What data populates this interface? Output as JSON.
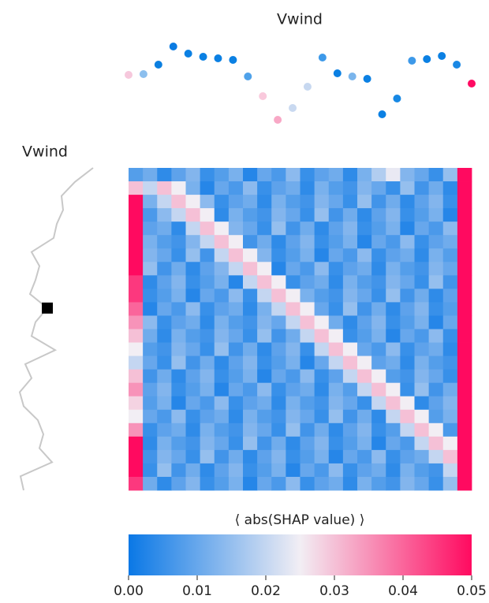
{
  "chart_data": {
    "type": "heatmap",
    "title": "Vwind",
    "row_title": "Vwind",
    "colorbar_label": "⟨ abs(SHAP value) ⟩",
    "colormap": [
      "#0a78e6",
      "#f2eef4",
      "#ff0a60"
    ],
    "clim": [
      0,
      0.05
    ],
    "cticks": [
      {
        "value": 0,
        "label": "0.00"
      },
      {
        "value": 0.01,
        "label": "0.01"
      },
      {
        "value": 0.02,
        "label": "0.02"
      },
      {
        "value": 0.03,
        "label": "0.03"
      },
      {
        "value": 0.04,
        "label": "0.04"
      },
      {
        "value": 0.05,
        "label": "0.05"
      }
    ],
    "top_values": [
      65,
      66,
      78,
      101,
      92,
      88,
      86,
      84,
      63,
      38,
      8,
      23,
      50,
      87,
      67,
      63,
      60,
      15,
      35,
      83,
      85,
      89,
      78,
      54
    ],
    "top_colors": [
      "#f6c8dc",
      "#8cbfee",
      "#0b7fe0",
      "#0a7be2",
      "#0b80e3",
      "#0b80e3",
      "#0b80e3",
      "#0b80e3",
      "#4fa2ea",
      "#f9c9dc",
      "#f8a8c6",
      "#c9d9f0",
      "#c7d8f0",
      "#3d99e9",
      "#0b80e3",
      "#7ab5ec",
      "#0b80e3",
      "#0b80e3",
      "#1788e4",
      "#3d99e9",
      "#0b80e3",
      "#0b80e3",
      "#1a88e4",
      "#ff0a62"
    ],
    "top_ylim": [
      0,
      110
    ],
    "left_values": [
      98,
      75,
      58,
      60,
      52,
      48,
      20,
      30,
      25,
      18,
      40,
      25,
      20,
      50,
      12,
      20,
      5,
      10,
      28,
      35,
      30,
      46,
      6,
      10
    ],
    "left_xlim": [
      0,
      110
    ],
    "selected_row": 10,
    "matrix": [
      [
        0.008,
        0.011,
        0.004,
        0.009,
        0.013,
        0.005,
        0.008,
        0.012,
        0.003,
        0.01,
        0.007,
        0.014,
        0.005,
        0.009,
        0.011,
        0.004,
        0.012,
        0.018,
        0.024,
        0.013,
        0.01,
        0.005,
        0.015,
        0.05
      ],
      [
        0.03,
        0.02,
        0.03,
        0.025,
        0.012,
        0.003,
        0.01,
        0.007,
        0.014,
        0.005,
        0.009,
        0.011,
        0.004,
        0.012,
        0.008,
        0.006,
        0.013,
        0.01,
        0.005,
        0.015,
        0.006,
        0.011,
        0.004,
        0.05
      ],
      [
        0.05,
        0.012,
        0.02,
        0.03,
        0.025,
        0.014,
        0.005,
        0.009,
        0.011,
        0.004,
        0.012,
        0.008,
        0.006,
        0.013,
        0.01,
        0.005,
        0.015,
        0.006,
        0.011,
        0.004,
        0.009,
        0.013,
        0.005,
        0.05
      ],
      [
        0.05,
        0.007,
        0.014,
        0.02,
        0.03,
        0.025,
        0.004,
        0.012,
        0.008,
        0.006,
        0.013,
        0.01,
        0.005,
        0.015,
        0.006,
        0.011,
        0.004,
        0.009,
        0.013,
        0.005,
        0.008,
        0.012,
        0.003,
        0.05
      ],
      [
        0.05,
        0.009,
        0.011,
        0.004,
        0.02,
        0.03,
        0.025,
        0.013,
        0.01,
        0.005,
        0.015,
        0.006,
        0.011,
        0.004,
        0.009,
        0.013,
        0.005,
        0.008,
        0.012,
        0.003,
        0.01,
        0.007,
        0.014,
        0.05
      ],
      [
        0.05,
        0.012,
        0.008,
        0.006,
        0.013,
        0.02,
        0.03,
        0.025,
        0.006,
        0.011,
        0.004,
        0.009,
        0.013,
        0.005,
        0.008,
        0.012,
        0.003,
        0.01,
        0.007,
        0.014,
        0.005,
        0.009,
        0.011,
        0.05
      ],
      [
        0.05,
        0.013,
        0.01,
        0.005,
        0.015,
        0.006,
        0.02,
        0.03,
        0.025,
        0.013,
        0.005,
        0.008,
        0.012,
        0.003,
        0.01,
        0.007,
        0.014,
        0.005,
        0.009,
        0.011,
        0.004,
        0.012,
        0.008,
        0.05
      ],
      [
        0.05,
        0.015,
        0.006,
        0.011,
        0.004,
        0.009,
        0.013,
        0.02,
        0.03,
        0.025,
        0.003,
        0.01,
        0.007,
        0.014,
        0.005,
        0.009,
        0.011,
        0.004,
        0.012,
        0.008,
        0.006,
        0.013,
        0.01,
        0.05
      ],
      [
        0.045,
        0.004,
        0.009,
        0.013,
        0.005,
        0.008,
        0.012,
        0.003,
        0.02,
        0.03,
        0.025,
        0.005,
        0.009,
        0.011,
        0.004,
        0.012,
        0.008,
        0.006,
        0.013,
        0.01,
        0.005,
        0.015,
        0.006,
        0.05
      ],
      [
        0.045,
        0.005,
        0.008,
        0.012,
        0.003,
        0.01,
        0.007,
        0.014,
        0.005,
        0.02,
        0.03,
        0.025,
        0.012,
        0.008,
        0.006,
        0.013,
        0.01,
        0.005,
        0.015,
        0.006,
        0.011,
        0.004,
        0.009,
        0.05
      ],
      [
        0.04,
        0.003,
        0.01,
        0.007,
        0.014,
        0.005,
        0.009,
        0.011,
        0.004,
        0.012,
        0.02,
        0.03,
        0.025,
        0.01,
        0.005,
        0.015,
        0.006,
        0.011,
        0.004,
        0.009,
        0.013,
        0.005,
        0.008,
        0.05
      ],
      [
        0.035,
        0.014,
        0.005,
        0.009,
        0.011,
        0.004,
        0.012,
        0.008,
        0.006,
        0.013,
        0.01,
        0.02,
        0.03,
        0.025,
        0.011,
        0.004,
        0.009,
        0.013,
        0.005,
        0.008,
        0.012,
        0.003,
        0.01,
        0.05
      ],
      [
        0.03,
        0.011,
        0.004,
        0.012,
        0.008,
        0.006,
        0.013,
        0.01,
        0.005,
        0.015,
        0.006,
        0.011,
        0.02,
        0.03,
        0.025,
        0.005,
        0.008,
        0.012,
        0.003,
        0.01,
        0.007,
        0.014,
        0.005,
        0.05
      ],
      [
        0.025,
        0.008,
        0.006,
        0.013,
        0.01,
        0.005,
        0.015,
        0.006,
        0.011,
        0.004,
        0.009,
        0.013,
        0.005,
        0.02,
        0.03,
        0.025,
        0.01,
        0.007,
        0.014,
        0.005,
        0.009,
        0.011,
        0.004,
        0.05
      ],
      [
        0.02,
        0.01,
        0.005,
        0.015,
        0.006,
        0.011,
        0.004,
        0.009,
        0.013,
        0.005,
        0.008,
        0.012,
        0.003,
        0.01,
        0.02,
        0.03,
        0.025,
        0.009,
        0.011,
        0.004,
        0.012,
        0.008,
        0.006,
        0.05
      ],
      [
        0.03,
        0.006,
        0.011,
        0.004,
        0.009,
        0.013,
        0.005,
        0.008,
        0.012,
        0.003,
        0.01,
        0.007,
        0.014,
        0.005,
        0.009,
        0.02,
        0.03,
        0.025,
        0.008,
        0.006,
        0.013,
        0.01,
        0.005,
        0.05
      ],
      [
        0.035,
        0.009,
        0.013,
        0.005,
        0.008,
        0.012,
        0.003,
        0.01,
        0.007,
        0.014,
        0.005,
        0.009,
        0.011,
        0.004,
        0.012,
        0.008,
        0.02,
        0.03,
        0.025,
        0.005,
        0.015,
        0.006,
        0.011,
        0.05
      ],
      [
        0.028,
        0.008,
        0.012,
        0.003,
        0.01,
        0.007,
        0.014,
        0.005,
        0.009,
        0.011,
        0.004,
        0.012,
        0.008,
        0.006,
        0.013,
        0.01,
        0.005,
        0.02,
        0.03,
        0.025,
        0.004,
        0.009,
        0.013,
        0.05
      ],
      [
        0.025,
        0.01,
        0.007,
        0.014,
        0.005,
        0.009,
        0.011,
        0.004,
        0.012,
        0.008,
        0.006,
        0.013,
        0.01,
        0.005,
        0.015,
        0.006,
        0.011,
        0.004,
        0.02,
        0.03,
        0.025,
        0.008,
        0.012,
        0.05
      ],
      [
        0.035,
        0.005,
        0.009,
        0.011,
        0.004,
        0.012,
        0.008,
        0.006,
        0.013,
        0.01,
        0.005,
        0.015,
        0.006,
        0.011,
        0.004,
        0.009,
        0.013,
        0.005,
        0.008,
        0.02,
        0.03,
        0.025,
        0.007,
        0.05
      ],
      [
        0.05,
        0.004,
        0.012,
        0.008,
        0.006,
        0.013,
        0.01,
        0.005,
        0.015,
        0.006,
        0.011,
        0.004,
        0.009,
        0.013,
        0.005,
        0.008,
        0.012,
        0.003,
        0.01,
        0.007,
        0.02,
        0.03,
        0.025,
        0.05
      ],
      [
        0.05,
        0.006,
        0.013,
        0.01,
        0.005,
        0.015,
        0.006,
        0.011,
        0.004,
        0.009,
        0.013,
        0.005,
        0.008,
        0.012,
        0.003,
        0.01,
        0.007,
        0.014,
        0.005,
        0.009,
        0.011,
        0.02,
        0.03,
        0.05
      ],
      [
        0.05,
        0.005,
        0.015,
        0.006,
        0.011,
        0.004,
        0.009,
        0.013,
        0.005,
        0.008,
        0.012,
        0.003,
        0.01,
        0.007,
        0.014,
        0.005,
        0.009,
        0.011,
        0.004,
        0.012,
        0.008,
        0.006,
        0.02,
        0.05
      ],
      [
        0.045,
        0.011,
        0.004,
        0.009,
        0.013,
        0.005,
        0.008,
        0.012,
        0.003,
        0.01,
        0.007,
        0.014,
        0.005,
        0.009,
        0.011,
        0.004,
        0.012,
        0.008,
        0.006,
        0.013,
        0.01,
        0.005,
        0.015,
        0.05
      ]
    ]
  }
}
